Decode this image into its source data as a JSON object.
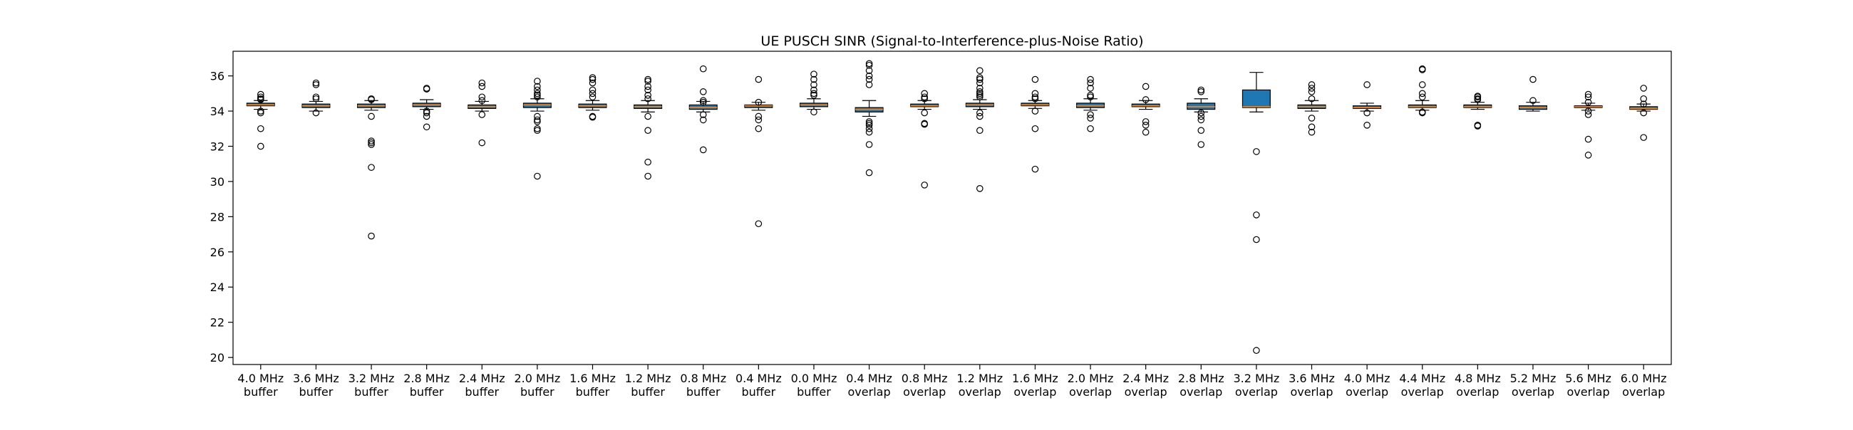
{
  "chart_data": {
    "type": "boxplot",
    "title": "UE PUSCH SINR (Signal-to-Interference-plus-Noise Ratio)",
    "xlabel": "",
    "ylabel": "",
    "ylim": [
      19.6,
      37.4
    ],
    "yticks": [
      20,
      22,
      24,
      26,
      28,
      30,
      32,
      34,
      36
    ],
    "grid": false,
    "box_color": "#1f77b4",
    "median_color": "#ff7f0e",
    "categories": [
      {
        "line1": "4.0 MHz",
        "line2": "buffer"
      },
      {
        "line1": "3.6 MHz",
        "line2": "buffer"
      },
      {
        "line1": "3.2 MHz",
        "line2": "buffer"
      },
      {
        "line1": "2.8 MHz",
        "line2": "buffer"
      },
      {
        "line1": "2.4 MHz",
        "line2": "buffer"
      },
      {
        "line1": "2.0 MHz",
        "line2": "buffer"
      },
      {
        "line1": "1.6 MHz",
        "line2": "buffer"
      },
      {
        "line1": "1.2 MHz",
        "line2": "buffer"
      },
      {
        "line1": "0.8 MHz",
        "line2": "buffer"
      },
      {
        "line1": "0.4 MHz",
        "line2": "buffer"
      },
      {
        "line1": "0.0 MHz",
        "line2": "buffer"
      },
      {
        "line1": "0.4 MHz",
        "line2": "overlap"
      },
      {
        "line1": "0.8 MHz",
        "line2": "overlap"
      },
      {
        "line1": "1.2 MHz",
        "line2": "overlap"
      },
      {
        "line1": "1.6 MHz",
        "line2": "overlap"
      },
      {
        "line1": "2.0 MHz",
        "line2": "overlap"
      },
      {
        "line1": "2.4 MHz",
        "line2": "overlap"
      },
      {
        "line1": "2.8 MHz",
        "line2": "overlap"
      },
      {
        "line1": "3.2 MHz",
        "line2": "overlap"
      },
      {
        "line1": "3.6 MHz",
        "line2": "overlap"
      },
      {
        "line1": "4.0 MHz",
        "line2": "overlap"
      },
      {
        "line1": "4.4 MHz",
        "line2": "overlap"
      },
      {
        "line1": "4.8 MHz",
        "line2": "overlap"
      },
      {
        "line1": "5.2 MHz",
        "line2": "overlap"
      },
      {
        "line1": "5.6 MHz",
        "line2": "overlap"
      },
      {
        "line1": "6.0 MHz",
        "line2": "overlap"
      }
    ],
    "boxes": [
      {
        "whislo": 34.1,
        "q1": 34.3,
        "med": 34.35,
        "q3": 34.45,
        "whishi": 34.6,
        "fliers": [
          34.95,
          34.8,
          34.7,
          34.65,
          34.0,
          33.9,
          33.0,
          32.0
        ]
      },
      {
        "whislo": 34.0,
        "q1": 34.2,
        "med": 34.3,
        "q3": 34.4,
        "whishi": 34.55,
        "fliers": [
          35.6,
          35.5,
          34.8,
          34.7,
          33.9
        ]
      },
      {
        "whislo": 34.05,
        "q1": 34.2,
        "med": 34.3,
        "q3": 34.4,
        "whishi": 34.6,
        "fliers": [
          34.7,
          34.65,
          33.7,
          32.3,
          32.2,
          32.1,
          30.8,
          26.9
        ]
      },
      {
        "whislo": 34.1,
        "q1": 34.25,
        "med": 34.35,
        "q3": 34.45,
        "whishi": 34.65,
        "fliers": [
          35.3,
          35.25,
          34.0,
          33.9,
          33.7,
          33.1
        ]
      },
      {
        "whislo": 34.0,
        "q1": 34.15,
        "med": 34.25,
        "q3": 34.35,
        "whishi": 34.55,
        "fliers": [
          35.6,
          35.4,
          34.8,
          34.6,
          33.8,
          32.2
        ]
      },
      {
        "whislo": 34.0,
        "q1": 34.2,
        "med": 34.35,
        "q3": 34.45,
        "whishi": 34.7,
        "fliers": [
          35.7,
          35.4,
          35.2,
          35.0,
          34.9,
          34.8,
          33.7,
          33.5,
          33.4,
          33.0,
          32.9,
          30.3
        ]
      },
      {
        "whislo": 34.05,
        "q1": 34.2,
        "med": 34.3,
        "q3": 34.4,
        "whishi": 34.6,
        "fliers": [
          35.9,
          35.8,
          35.6,
          35.2,
          35.0,
          34.8,
          33.7,
          33.65
        ]
      },
      {
        "whislo": 33.95,
        "q1": 34.15,
        "med": 34.25,
        "q3": 34.35,
        "whishi": 34.6,
        "fliers": [
          35.8,
          35.7,
          35.4,
          35.2,
          34.9,
          34.7,
          33.7,
          32.9,
          31.1,
          30.3
        ]
      },
      {
        "whislo": 33.95,
        "q1": 34.1,
        "med": 34.2,
        "q3": 34.35,
        "whishi": 34.55,
        "fliers": [
          36.4,
          35.1,
          34.6,
          34.5,
          33.8,
          33.5,
          31.8
        ]
      },
      {
        "whislo": 34.05,
        "q1": 34.2,
        "med": 34.3,
        "q3": 34.35,
        "whishi": 34.5,
        "fliers": [
          35.8,
          34.5,
          33.7,
          33.5,
          33.0,
          27.6
        ]
      },
      {
        "whislo": 34.1,
        "q1": 34.25,
        "med": 34.35,
        "q3": 34.45,
        "whishi": 34.7,
        "fliers": [
          36.1,
          35.8,
          35.5,
          35.2,
          35.0,
          34.9,
          33.95
        ]
      },
      {
        "whislo": 33.7,
        "q1": 33.95,
        "med": 34.1,
        "q3": 34.2,
        "whishi": 34.6,
        "fliers": [
          36.7,
          36.6,
          36.3,
          36.0,
          35.8,
          35.5,
          33.4,
          33.3,
          33.2,
          33.0,
          32.8,
          32.1,
          30.5
        ]
      },
      {
        "whislo": 34.1,
        "q1": 34.25,
        "med": 34.3,
        "q3": 34.4,
        "whishi": 34.6,
        "fliers": [
          35.0,
          34.8,
          34.7,
          33.9,
          33.3,
          33.25,
          29.8
        ]
      },
      {
        "whislo": 34.1,
        "q1": 34.25,
        "med": 34.35,
        "q3": 34.45,
        "whishi": 34.65,
        "fliers": [
          36.3,
          35.9,
          35.8,
          35.6,
          35.3,
          35.1,
          35.0,
          34.9,
          34.8,
          33.9,
          33.7,
          32.9,
          29.6
        ]
      },
      {
        "whislo": 34.15,
        "q1": 34.3,
        "med": 34.35,
        "q3": 34.45,
        "whishi": 34.6,
        "fliers": [
          35.8,
          35.0,
          34.8,
          34.7,
          34.0,
          33.0,
          30.7
        ]
      },
      {
        "whislo": 34.05,
        "q1": 34.2,
        "med": 34.3,
        "q3": 34.45,
        "whishi": 34.7,
        "fliers": [
          35.8,
          35.6,
          35.3,
          34.9,
          34.8,
          33.8,
          33.6,
          33.0
        ]
      },
      {
        "whislo": 34.1,
        "q1": 34.25,
        "med": 34.3,
        "q3": 34.4,
        "whishi": 34.6,
        "fliers": [
          35.4,
          34.65,
          33.4,
          33.2,
          32.8
        ]
      },
      {
        "whislo": 33.95,
        "q1": 34.1,
        "med": 34.25,
        "q3": 34.45,
        "whishi": 34.7,
        "fliers": [
          35.2,
          35.1,
          33.9,
          33.7,
          33.5,
          32.9,
          32.1
        ]
      },
      {
        "whislo": 33.95,
        "q1": 34.2,
        "med": 34.25,
        "q3": 35.2,
        "whishi": 36.2,
        "fliers": [
          31.7,
          28.1,
          26.7,
          20.4
        ]
      },
      {
        "whislo": 34.0,
        "q1": 34.15,
        "med": 34.25,
        "q3": 34.35,
        "whishi": 34.6,
        "fliers": [
          35.5,
          35.3,
          35.1,
          34.7,
          33.6,
          33.1,
          32.8
        ]
      },
      {
        "whislo": 34.0,
        "q1": 34.15,
        "med": 34.2,
        "q3": 34.3,
        "whishi": 34.45,
        "fliers": [
          35.5,
          33.9,
          33.2
        ]
      },
      {
        "whislo": 34.05,
        "q1": 34.2,
        "med": 34.25,
        "q3": 34.35,
        "whishi": 34.6,
        "fliers": [
          36.4,
          36.35,
          35.5,
          35.0,
          34.8,
          33.95,
          33.9
        ]
      },
      {
        "whislo": 34.1,
        "q1": 34.2,
        "med": 34.25,
        "q3": 34.35,
        "whishi": 34.5,
        "fliers": [
          34.85,
          34.8,
          34.7,
          34.65,
          33.2,
          33.15
        ]
      },
      {
        "whislo": 34.0,
        "q1": 34.1,
        "med": 34.2,
        "q3": 34.3,
        "whishi": 34.5,
        "fliers": [
          35.8,
          34.6
        ]
      },
      {
        "whislo": 34.05,
        "q1": 34.2,
        "med": 34.25,
        "q3": 34.3,
        "whishi": 34.45,
        "fliers": [
          34.95,
          34.8,
          34.5,
          34.0,
          33.8,
          32.4,
          31.5
        ]
      },
      {
        "whislo": 34.0,
        "q1": 34.1,
        "med": 34.15,
        "q3": 34.25,
        "whishi": 34.4,
        "fliers": [
          35.3,
          34.7,
          34.4,
          33.9,
          32.5
        ]
      }
    ]
  }
}
